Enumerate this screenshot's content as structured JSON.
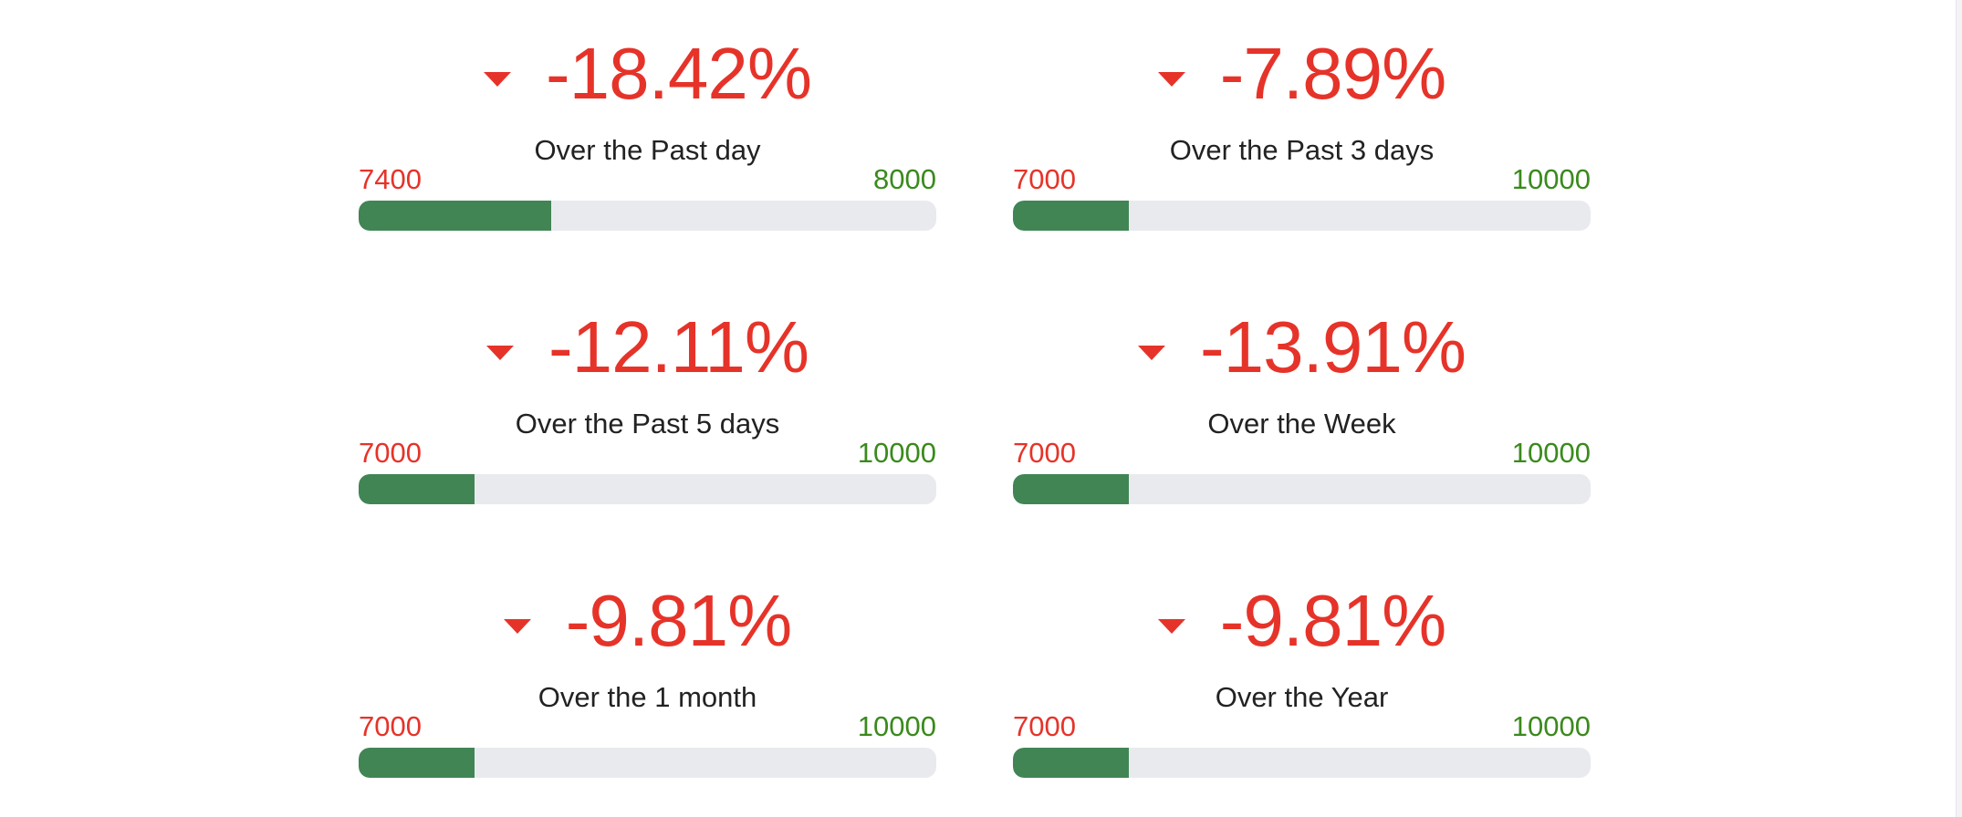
{
  "colors": {
    "negative": "#e63329",
    "positive": "#3a8a1c",
    "bar_fill": "#418555",
    "bar_track": "#e9eaee"
  },
  "icons": {
    "change_indicator": "caret-down-icon"
  },
  "cards": [
    {
      "change": "-18.42%",
      "period": "Over the Past day",
      "min": "7400",
      "max": "8000",
      "progress": 0.333
    },
    {
      "change": "-7.89%",
      "period": "Over the Past 3 days",
      "min": "7000",
      "max": "10000",
      "progress": 0.2
    },
    {
      "change": "-12.11%",
      "period": "Over the Past 5 days",
      "min": "7000",
      "max": "10000",
      "progress": 0.2
    },
    {
      "change": "-13.91%",
      "period": "Over the Week",
      "min": "7000",
      "max": "10000",
      "progress": 0.2
    },
    {
      "change": "-9.81%",
      "period": "Over the 1 month",
      "min": "7000",
      "max": "10000",
      "progress": 0.2
    },
    {
      "change": "-9.81%",
      "period": "Over the Year",
      "min": "7000",
      "max": "10000",
      "progress": 0.2
    }
  ]
}
